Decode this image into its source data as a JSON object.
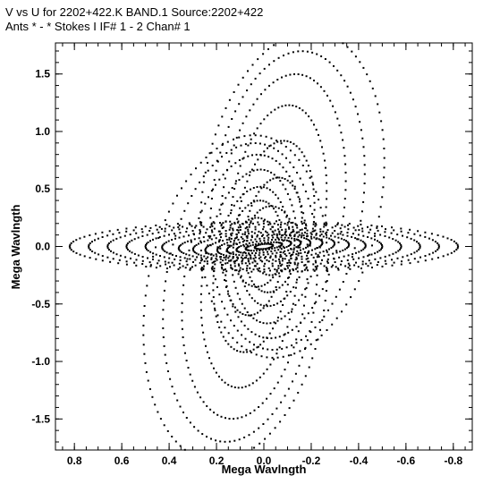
{
  "chart_data": {
    "type": "scatter",
    "title_line_1": "V vs U for 2202+422.K BAND.1   Source:2202+422",
    "title_line_2": "Ants * - *     Stokes I   IF# 1 - 2   Chan# 1",
    "xlabel": "Mega Wavlngth",
    "ylabel": "Mega Wavlngth",
    "xlim": [
      0.88,
      -0.88
    ],
    "ylim": [
      -1.77,
      1.77
    ],
    "x_ticks": [
      0.8,
      0.6,
      0.4,
      0.2,
      0.0,
      -0.2,
      -0.4,
      -0.6,
      -0.8
    ],
    "x_tick_labels": [
      "0.8",
      "0.6",
      "0.4",
      "0.2",
      "0.0",
      "-0.2",
      "-0.4",
      "-0.6",
      "-0.8"
    ],
    "y_ticks": [
      1.5,
      1.0,
      0.5,
      0.0,
      -0.5,
      -1.0,
      -1.5
    ],
    "y_tick_labels": [
      "1.5",
      "1.0",
      "0.5",
      "0.0",
      "-0.5",
      "-1.0",
      "-1.5"
    ],
    "grid": false,
    "marker_color": "#000000",
    "series": [
      {
        "tracks": [
          {
            "cx": 0.0,
            "cy": 0.0,
            "ax": 0.04,
            "ay": 0.02,
            "ang": -0.3,
            "t0": 0.0,
            "t1": 6.28,
            "n": 28
          },
          {
            "cx": 0.0,
            "cy": 0.0,
            "ax": 0.08,
            "ay": 0.03,
            "ang": -0.3,
            "t0": 0.0,
            "t1": 6.28,
            "n": 36
          },
          {
            "cx": 0.0,
            "cy": 0.0,
            "ax": 0.12,
            "ay": 0.05,
            "ang": -0.3,
            "t0": 0.0,
            "t1": 6.28,
            "n": 44
          },
          {
            "cx": 0.0,
            "cy": 0.0,
            "ax": 0.16,
            "ay": 0.07,
            "ang": -0.25,
            "t0": 0.0,
            "t1": 6.28,
            "n": 52
          },
          {
            "cx": 0.0,
            "cy": 0.0,
            "ax": 0.2,
            "ay": 0.09,
            "ang": -0.2,
            "t0": 0.0,
            "t1": 6.28,
            "n": 58
          },
          {
            "cx": 0.0,
            "cy": 0.0,
            "ax": 0.25,
            "ay": 0.1,
            "ang": -0.15,
            "t0": 0.0,
            "t1": 6.28,
            "n": 66
          },
          {
            "cx": 0.0,
            "cy": 0.0,
            "ax": 0.3,
            "ay": 0.12,
            "ang": -0.1,
            "t0": 0.0,
            "t1": 6.28,
            "n": 72
          },
          {
            "cx": 0.0,
            "cy": 0.0,
            "ax": 0.36,
            "ay": 0.13,
            "ang": -0.05,
            "t0": 0.0,
            "t1": 6.28,
            "n": 78
          },
          {
            "cx": 0.0,
            "cy": 0.0,
            "ax": 0.43,
            "ay": 0.15,
            "ang": -0.02,
            "t0": 0.0,
            "t1": 6.28,
            "n": 84
          },
          {
            "cx": 0.0,
            "cy": 0.0,
            "ax": 0.5,
            "ay": 0.17,
            "ang": 0.0,
            "t0": 0.0,
            "t1": 6.28,
            "n": 88
          },
          {
            "cx": 0.0,
            "cy": 0.0,
            "ax": 0.58,
            "ay": 0.19,
            "ang": 0.0,
            "t0": 0.0,
            "t1": 6.28,
            "n": 90
          },
          {
            "cx": 0.0,
            "cy": 0.0,
            "ax": 0.66,
            "ay": 0.2,
            "ang": 0.0,
            "t0": 0.0,
            "t1": 6.28,
            "n": 92
          },
          {
            "cx": 0.0,
            "cy": 0.0,
            "ax": 0.74,
            "ay": 0.21,
            "ang": 0.0,
            "t0": 0.0,
            "t1": 6.28,
            "n": 94
          },
          {
            "cx": 0.0,
            "cy": 0.0,
            "ax": 0.82,
            "ay": 0.22,
            "ang": 0.0,
            "t0": 0.0,
            "t1": 6.28,
            "n": 96
          },
          {
            "cx": -0.03,
            "cy": 0.05,
            "ax": 0.1,
            "ay": 0.3,
            "ang": 0.0,
            "t0": 0.0,
            "t1": 6.28,
            "n": 46
          },
          {
            "cx": -0.04,
            "cy": 0.1,
            "ax": 0.12,
            "ay": 0.5,
            "ang": 0.05,
            "t0": 0.0,
            "t1": 6.28,
            "n": 60
          },
          {
            "cx": -0.05,
            "cy": 0.2,
            "ax": 0.16,
            "ay": 0.72,
            "ang": 0.05,
            "t0": 0.0,
            "t1": 6.28,
            "n": 72
          },
          {
            "cx": -0.06,
            "cy": 0.28,
            "ax": 0.2,
            "ay": 0.95,
            "ang": 0.05,
            "t0": 0.0,
            "t1": 6.28,
            "n": 84
          },
          {
            "cx": -0.08,
            "cy": 0.35,
            "ax": 0.26,
            "ay": 1.15,
            "ang": 0.05,
            "t0": 0.0,
            "t1": 6.28,
            "n": 94
          },
          {
            "cx": -0.1,
            "cy": 0.4,
            "ax": 0.32,
            "ay": 1.3,
            "ang": 0.05,
            "t0": 0.0,
            "t1": 6.28,
            "n": 100
          },
          {
            "cx": -0.12,
            "cy": 0.45,
            "ax": 0.38,
            "ay": 1.42,
            "ang": 0.06,
            "t0": 0.0,
            "t1": 6.28,
            "n": 104
          },
          {
            "cx": 0.03,
            "cy": -0.05,
            "ax": 0.1,
            "ay": 0.3,
            "ang": 0.0,
            "t0": 0.0,
            "t1": 6.28,
            "n": 46
          },
          {
            "cx": 0.04,
            "cy": -0.1,
            "ax": 0.12,
            "ay": 0.5,
            "ang": 0.05,
            "t0": 0.0,
            "t1": 6.28,
            "n": 60
          },
          {
            "cx": 0.05,
            "cy": -0.2,
            "ax": 0.16,
            "ay": 0.72,
            "ang": 0.05,
            "t0": 0.0,
            "t1": 6.28,
            "n": 72
          },
          {
            "cx": 0.06,
            "cy": -0.28,
            "ax": 0.2,
            "ay": 0.95,
            "ang": 0.05,
            "t0": 0.0,
            "t1": 6.28,
            "n": 84
          },
          {
            "cx": 0.08,
            "cy": -0.35,
            "ax": 0.26,
            "ay": 1.15,
            "ang": 0.05,
            "t0": 0.0,
            "t1": 6.28,
            "n": 94
          },
          {
            "cx": 0.1,
            "cy": -0.4,
            "ax": 0.32,
            "ay": 1.3,
            "ang": 0.05,
            "t0": 0.0,
            "t1": 6.28,
            "n": 100
          },
          {
            "cx": 0.12,
            "cy": -0.45,
            "ax": 0.38,
            "ay": 1.42,
            "ang": 0.06,
            "t0": 0.0,
            "t1": 6.28,
            "n": 104
          }
        ]
      }
    ]
  }
}
